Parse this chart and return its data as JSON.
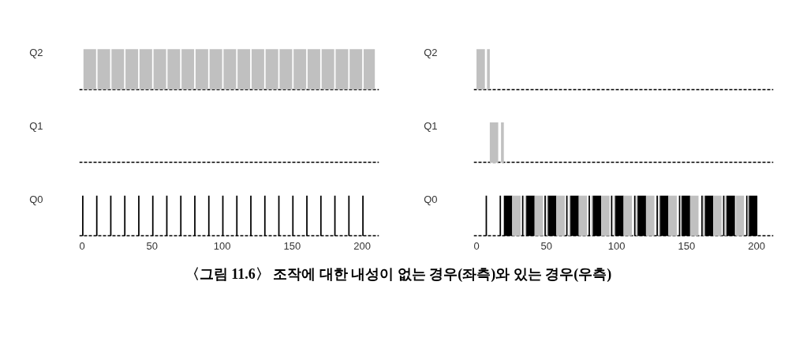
{
  "chart_data": [
    {
      "type": "bar",
      "orientation": "horizontal",
      "categories": [
        "Q2",
        "Q1",
        "Q0"
      ],
      "xlim": [
        -2,
        212
      ],
      "xticks": [
        0,
        50,
        100,
        150,
        200
      ],
      "grid": "y",
      "series": [
        {
          "values": [
            9,
            null,
            1
          ],
          "base": [
            1,
            null,
            0
          ],
          "colors": [
            "#c0c0c0",
            null,
            "#000000"
          ]
        },
        {
          "values": [
            9,
            null,
            1
          ],
          "base": [
            11,
            null,
            10
          ],
          "colors": [
            "#c0c0c0",
            null,
            "#000000"
          ]
        },
        {
          "values": [
            9,
            null,
            1
          ],
          "base": [
            21,
            null,
            20
          ],
          "colors": [
            "#c0c0c0",
            null,
            "#000000"
          ]
        },
        {
          "values": [
            9,
            null,
            1
          ],
          "base": [
            31,
            null,
            30
          ],
          "colors": [
            "#c0c0c0",
            null,
            "#000000"
          ]
        },
        {
          "values": [
            9,
            null,
            1
          ],
          "base": [
            41,
            null,
            40
          ],
          "colors": [
            "#c0c0c0",
            null,
            "#000000"
          ]
        },
        {
          "values": [
            9,
            null,
            1
          ],
          "base": [
            51,
            null,
            50
          ],
          "colors": [
            "#c0c0c0",
            null,
            "#000000"
          ]
        },
        {
          "values": [
            9,
            null,
            1
          ],
          "base": [
            61,
            null,
            60
          ],
          "colors": [
            "#c0c0c0",
            null,
            "#000000"
          ]
        },
        {
          "values": [
            9,
            null,
            1
          ],
          "base": [
            71,
            null,
            70
          ],
          "colors": [
            "#c0c0c0",
            null,
            "#000000"
          ]
        },
        {
          "values": [
            9,
            null,
            1
          ],
          "base": [
            81,
            null,
            80
          ],
          "colors": [
            "#c0c0c0",
            null,
            "#000000"
          ]
        },
        {
          "values": [
            9,
            null,
            1
          ],
          "base": [
            91,
            null,
            90
          ],
          "colors": [
            "#c0c0c0",
            null,
            "#000000"
          ]
        },
        {
          "values": [
            9,
            null,
            1
          ],
          "base": [
            101,
            null,
            100
          ],
          "colors": [
            "#c0c0c0",
            null,
            "#000000"
          ]
        },
        {
          "values": [
            9,
            null,
            1
          ],
          "base": [
            111,
            null,
            110
          ],
          "colors": [
            "#c0c0c0",
            null,
            "#000000"
          ]
        },
        {
          "values": [
            9,
            null,
            1
          ],
          "base": [
            121,
            null,
            120
          ],
          "colors": [
            "#c0c0c0",
            null,
            "#000000"
          ]
        },
        {
          "values": [
            9,
            null,
            1
          ],
          "base": [
            131,
            null,
            130
          ],
          "colors": [
            "#c0c0c0",
            null,
            "#000000"
          ]
        },
        {
          "values": [
            9,
            null,
            1
          ],
          "base": [
            141,
            null,
            140
          ],
          "colors": [
            "#c0c0c0",
            null,
            "#000000"
          ]
        },
        {
          "values": [
            9,
            null,
            1
          ],
          "base": [
            151,
            null,
            150
          ],
          "colors": [
            "#c0c0c0",
            null,
            "#000000"
          ]
        },
        {
          "values": [
            9,
            null,
            1
          ],
          "base": [
            161,
            null,
            160
          ],
          "colors": [
            "#c0c0c0",
            null,
            "#000000"
          ]
        },
        {
          "values": [
            9,
            null,
            1
          ],
          "base": [
            171,
            null,
            170
          ],
          "colors": [
            "#c0c0c0",
            null,
            "#000000"
          ]
        },
        {
          "values": [
            9,
            null,
            1
          ],
          "base": [
            181,
            null,
            180
          ],
          "colors": [
            "#c0c0c0",
            null,
            "#000000"
          ]
        },
        {
          "values": [
            9,
            null,
            1
          ],
          "base": [
            191,
            null,
            190
          ],
          "colors": [
            "#c0c0c0",
            null,
            "#000000"
          ]
        },
        {
          "values": [
            8,
            null,
            1
          ],
          "base": [
            201,
            null,
            200
          ],
          "colors": [
            "#c0c0c0",
            null,
            "#000000"
          ]
        }
      ]
    },
    {
      "type": "bar",
      "orientation": "horizontal",
      "categories": [
        "Q2",
        "Q1",
        "Q0"
      ],
      "xlim": [
        -2,
        212
      ],
      "xticks": [
        0,
        50,
        100,
        150,
        200
      ],
      "grid": "y",
      "annotations": [
        "〈그림 11.6〉 조작에 대한 내성이 없는 경우(좌측)와 있는 경우(우측)"
      ],
      "series": [
        {
          "values": [
            6,
            6,
            1
          ],
          "base": [
            0,
            9.5,
            6.5
          ],
          "colors": [
            "#c0c0c0",
            "#c0c0c0",
            "#000000"
          ]
        },
        {
          "values": [
            2,
            2,
            1
          ],
          "base": [
            7.5,
            17.5,
            16.5
          ],
          "colors": [
            "#c0c0c0",
            "#c0c0c0",
            "#000000"
          ]
        },
        {
          "values": [
            null,
            null,
            6
          ],
          "base": [
            null,
            null,
            19.5
          ],
          "colors": [
            null,
            null,
            "#000000"
          ]
        },
        {
          "values": [
            null,
            null,
            6
          ],
          "base": [
            null,
            null,
            25.5
          ],
          "colors": [
            null,
            null,
            "#c0c0c0"
          ]
        },
        {
          "values": [
            null,
            null,
            1
          ],
          "base": [
            null,
            null,
            32.5
          ],
          "colors": [
            null,
            null,
            "#000000"
          ]
        },
        {
          "values": [
            null,
            null,
            1
          ],
          "base": [
            null,
            null,
            34.5
          ],
          "colors": [
            null,
            null,
            "#c0c0c0"
          ]
        },
        {
          "values": [
            null,
            null,
            6
          ],
          "base": [
            null,
            null,
            35.5
          ],
          "colors": [
            null,
            null,
            "#000000"
          ]
        },
        {
          "values": [
            null,
            null,
            6
          ],
          "base": [
            null,
            null,
            41.5
          ],
          "colors": [
            null,
            null,
            "#c0c0c0"
          ]
        },
        {
          "values": [
            null,
            null,
            1
          ],
          "base": [
            null,
            null,
            48.5
          ],
          "colors": [
            null,
            null,
            "#000000"
          ]
        },
        {
          "values": [
            null,
            null,
            1
          ],
          "base": [
            null,
            null,
            50
          ],
          "colors": [
            null,
            null,
            "#c0c0c0"
          ]
        },
        {
          "values": [
            null,
            null,
            6
          ],
          "base": [
            null,
            null,
            51
          ],
          "colors": [
            null,
            null,
            "#000000"
          ]
        },
        {
          "values": [
            null,
            null,
            6
          ],
          "base": [
            null,
            null,
            57
          ],
          "colors": [
            null,
            null,
            "#c0c0c0"
          ]
        },
        {
          "values": [
            null,
            null,
            1
          ],
          "base": [
            null,
            null,
            64
          ],
          "colors": [
            null,
            null,
            "#000000"
          ]
        },
        {
          "values": [
            null,
            null,
            1
          ],
          "base": [
            null,
            null,
            66
          ],
          "colors": [
            null,
            null,
            "#c0c0c0"
          ]
        },
        {
          "values": [
            null,
            null,
            6
          ],
          "base": [
            null,
            null,
            67
          ],
          "colors": [
            null,
            null,
            "#000000"
          ]
        },
        {
          "values": [
            null,
            null,
            6
          ],
          "base": [
            null,
            null,
            73
          ],
          "colors": [
            null,
            null,
            "#c0c0c0"
          ]
        },
        {
          "values": [
            null,
            null,
            1
          ],
          "base": [
            null,
            null,
            80
          ],
          "colors": [
            null,
            null,
            "#000000"
          ]
        },
        {
          "values": [
            null,
            null,
            1
          ],
          "base": [
            null,
            null,
            82
          ],
          "colors": [
            null,
            null,
            "#c0c0c0"
          ]
        },
        {
          "values": [
            null,
            null,
            6
          ],
          "base": [
            null,
            null,
            83
          ],
          "colors": [
            null,
            null,
            "#000000"
          ]
        },
        {
          "values": [
            null,
            null,
            6
          ],
          "base": [
            null,
            null,
            89
          ],
          "colors": [
            null,
            null,
            "#c0c0c0"
          ]
        },
        {
          "values": [
            null,
            null,
            1
          ],
          "base": [
            null,
            null,
            96
          ],
          "colors": [
            null,
            null,
            "#000000"
          ]
        },
        {
          "values": [
            null,
            null,
            1
          ],
          "base": [
            null,
            null,
            98
          ],
          "colors": [
            null,
            null,
            "#c0c0c0"
          ]
        },
        {
          "values": [
            null,
            null,
            6
          ],
          "base": [
            null,
            null,
            99
          ],
          "colors": [
            null,
            null,
            "#000000"
          ]
        },
        {
          "values": [
            null,
            null,
            6
          ],
          "base": [
            null,
            null,
            105
          ],
          "colors": [
            null,
            null,
            "#c0c0c0"
          ]
        },
        {
          "values": [
            null,
            null,
            1
          ],
          "base": [
            null,
            null,
            112.5
          ],
          "colors": [
            null,
            null,
            "#000000"
          ]
        },
        {
          "values": [
            null,
            null,
            1
          ],
          "base": [
            null,
            null,
            114
          ],
          "colors": [
            null,
            null,
            "#c0c0c0"
          ]
        },
        {
          "values": [
            null,
            null,
            6
          ],
          "base": [
            null,
            null,
            115
          ],
          "colors": [
            null,
            null,
            "#000000"
          ]
        },
        {
          "values": [
            null,
            null,
            6
          ],
          "base": [
            null,
            null,
            121
          ],
          "colors": [
            null,
            null,
            "#c0c0c0"
          ]
        },
        {
          "values": [
            null,
            null,
            1
          ],
          "base": [
            null,
            null,
            128.5
          ],
          "colors": [
            null,
            null,
            "#000000"
          ]
        },
        {
          "values": [
            null,
            null,
            1
          ],
          "base": [
            null,
            null,
            130
          ],
          "colors": [
            null,
            null,
            "#c0c0c0"
          ]
        },
        {
          "values": [
            null,
            null,
            6
          ],
          "base": [
            null,
            null,
            131
          ],
          "colors": [
            null,
            null,
            "#000000"
          ]
        },
        {
          "values": [
            null,
            null,
            6
          ],
          "base": [
            null,
            null,
            137
          ],
          "colors": [
            null,
            null,
            "#c0c0c0"
          ]
        },
        {
          "values": [
            null,
            null,
            1
          ],
          "base": [
            null,
            null,
            144.5
          ],
          "colors": [
            null,
            null,
            "#000000"
          ]
        },
        {
          "values": [
            null,
            null,
            1
          ],
          "base": [
            null,
            null,
            145.5
          ],
          "colors": [
            null,
            null,
            "#c0c0c0"
          ]
        },
        {
          "values": [
            null,
            null,
            6
          ],
          "base": [
            null,
            null,
            146.5
          ],
          "colors": [
            null,
            null,
            "#000000"
          ]
        },
        {
          "values": [
            null,
            null,
            6
          ],
          "base": [
            null,
            null,
            152.5
          ],
          "colors": [
            null,
            null,
            "#c0c0c0"
          ]
        },
        {
          "values": [
            null,
            null,
            1
          ],
          "base": [
            null,
            null,
            160.5
          ],
          "colors": [
            null,
            null,
            "#000000"
          ]
        },
        {
          "values": [
            null,
            null,
            1
          ],
          "base": [
            null,
            null,
            161.5
          ],
          "colors": [
            null,
            null,
            "#c0c0c0"
          ]
        },
        {
          "values": [
            null,
            null,
            6
          ],
          "base": [
            null,
            null,
            163
          ],
          "colors": [
            null,
            null,
            "#000000"
          ]
        },
        {
          "values": [
            null,
            null,
            6
          ],
          "base": [
            null,
            null,
            169
          ],
          "colors": [
            null,
            null,
            "#c0c0c0"
          ]
        },
        {
          "values": [
            null,
            null,
            1
          ],
          "base": [
            null,
            null,
            176
          ],
          "colors": [
            null,
            null,
            "#000000"
          ]
        },
        {
          "values": [
            null,
            null,
            1
          ],
          "base": [
            null,
            null,
            177.5
          ],
          "colors": [
            null,
            null,
            "#c0c0c0"
          ]
        },
        {
          "values": [
            null,
            null,
            6
          ],
          "base": [
            null,
            null,
            178.5
          ],
          "colors": [
            null,
            null,
            "#000000"
          ]
        },
        {
          "values": [
            null,
            null,
            6
          ],
          "base": [
            null,
            null,
            185
          ],
          "colors": [
            null,
            null,
            "#c0c0c0"
          ]
        },
        {
          "values": [
            null,
            null,
            1
          ],
          "base": [
            null,
            null,
            192.5
          ],
          "colors": [
            null,
            null,
            "#000000"
          ]
        },
        {
          "values": [
            null,
            null,
            1
          ],
          "base": [
            null,
            null,
            193.5
          ],
          "colors": [
            null,
            null,
            "#c0c0c0"
          ]
        },
        {
          "values": [
            null,
            null,
            6
          ],
          "base": [
            null,
            null,
            194.5
          ],
          "colors": [
            null,
            null,
            "#000000"
          ]
        }
      ]
    }
  ]
}
